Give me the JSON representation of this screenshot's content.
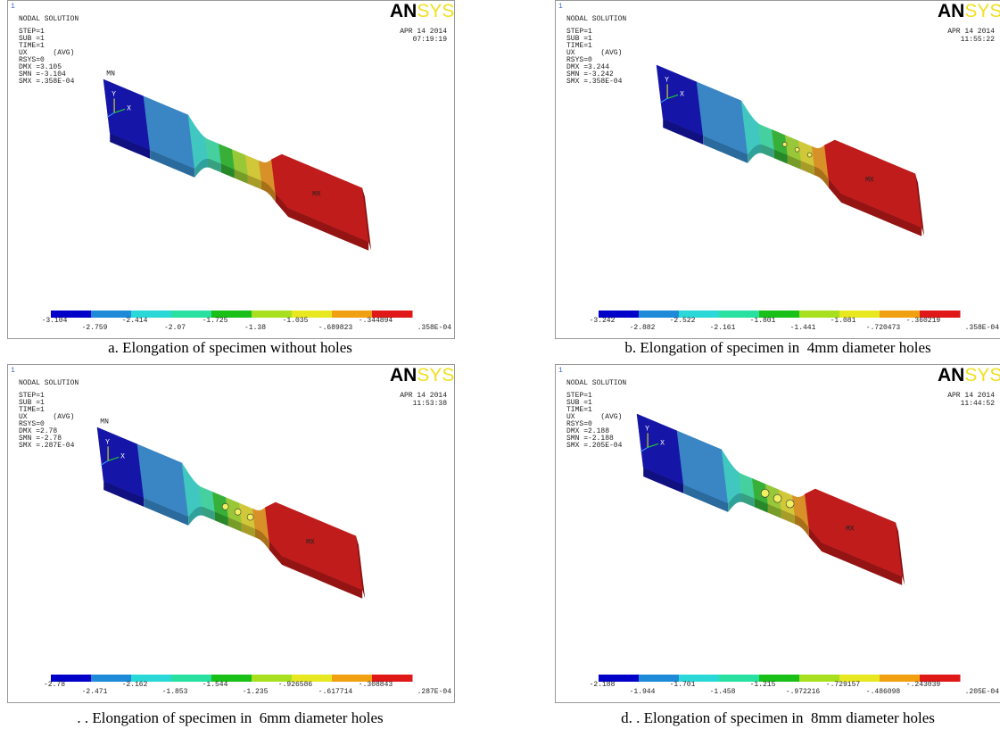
{
  "panels": [
    {
      "corner": "1",
      "title": "NODAL SOLUTION",
      "info": [
        "STEP=1",
        "SUB =1",
        "TIME=1",
        "UX      (AVG)",
        "RSYS=0",
        "DMX =3.105",
        "SMN =-3.104",
        "SMX =.358E-04"
      ],
      "logo": [
        "AN",
        "SYS"
      ],
      "date": "APR 14 2014",
      "time": "07:19:19",
      "min_label": "MN",
      "max_label": "MX",
      "axes": [
        "Y",
        "X"
      ],
      "legend": [
        "-3.104",
        "-2.759",
        "-2.414",
        "-2.07",
        "-1.725",
        "-1.38",
        "-1.035",
        "-.689823",
        "-.344894",
        ".358E-04"
      ],
      "caption": "a. Elongation of specimen without holes"
    },
    {
      "corner": "1",
      "title": "NODAL SOLUTION",
      "info": [
        "STEP=1",
        "SUB =1",
        "TIME=1",
        "UX      (AVG)",
        "RSYS=0",
        "DMX =3.244",
        "SMN =-3.242",
        "SMX =.358E-04"
      ],
      "logo": [
        "AN",
        "SYS"
      ],
      "date": "APR 14 2014",
      "time": "11:55:22",
      "max_label": "MX",
      "axes": [
        "Y",
        "X"
      ],
      "legend": [
        "-3.242",
        "-2.882",
        "-2.522",
        "-2.161",
        "-1.801",
        "-1.441",
        "-1.081",
        "-.720473",
        "-.360219",
        ".358E-04"
      ],
      "caption": "b. Elongation of specimen in  4mm diameter holes"
    },
    {
      "corner": "1",
      "title": "NODAL SOLUTION",
      "info": [
        "STEP=1",
        "SUB =1",
        "TIME=1",
        "UX      (AVG)",
        "RSYS=0",
        "DMX =2.78",
        "SMN =-2.78",
        "SMX =.287E-04"
      ],
      "logo": [
        "AN",
        "SYS"
      ],
      "date": "APR 14 2014",
      "time": "11:53:38",
      "min_label": "MN",
      "max_label": "MX",
      "axes": [
        "Y",
        "X"
      ],
      "legend": [
        "-2.78",
        "-2.471",
        "-2.162",
        "-1.853",
        "-1.544",
        "-1.235",
        "-.926586",
        "-.617714",
        "-.308843",
        ".287E-04"
      ],
      "caption": ". . Elongation of specimen in  6mm diameter holes"
    },
    {
      "corner": "1",
      "title": "NODAL SOLUTION",
      "info": [
        "STEP=1",
        "SUB =1",
        "TIME=1",
        "UX      (AVG)",
        "RSYS=0",
        "DMX =2.188",
        "SMN =-2.188",
        "SMX =.205E-04"
      ],
      "logo": [
        "AN",
        "SYS"
      ],
      "date": "APR 14 2014",
      "time": "11:44:52",
      "max_label": "MX",
      "axes": [
        "Y",
        "X"
      ],
      "legend": [
        "-2.188",
        "-1.944",
        "-1.701",
        "-1.458",
        "-1.215",
        "-.972216",
        "-.729157",
        "-.486098",
        "-.243039",
        ".205E-04"
      ],
      "caption": "d. . Elongation of specimen in  8mm diameter holes"
    }
  ]
}
